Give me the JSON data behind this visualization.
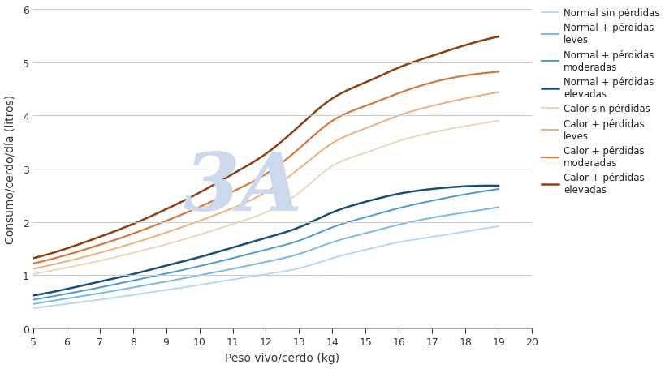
{
  "x": [
    5,
    6,
    7,
    8,
    9,
    10,
    11,
    12,
    13,
    14,
    15,
    16,
    17,
    18,
    19
  ],
  "series": [
    {
      "label": "Normal sin pérdidas",
      "color": "#b8d8f0",
      "linewidth": 1.4,
      "y": [
        0.38,
        0.46,
        0.54,
        0.63,
        0.72,
        0.82,
        0.92,
        1.02,
        1.13,
        1.32,
        1.48,
        1.62,
        1.72,
        1.82,
        1.92
      ]
    },
    {
      "label": "Normal + pérdidas\nleves",
      "color": "#7ab8de",
      "linewidth": 1.4,
      "y": [
        0.46,
        0.56,
        0.66,
        0.77,
        0.88,
        1.0,
        1.12,
        1.25,
        1.4,
        1.62,
        1.79,
        1.95,
        2.08,
        2.18,
        2.28
      ]
    },
    {
      "label": "Normal + pérdidas\nmoderadas",
      "color": "#4a9cc8",
      "linewidth": 1.4,
      "y": [
        0.54,
        0.65,
        0.77,
        0.9,
        1.03,
        1.17,
        1.32,
        1.48,
        1.65,
        1.9,
        2.09,
        2.26,
        2.4,
        2.52,
        2.62
      ]
    },
    {
      "label": "Normal + pérdidas\nelevadas",
      "color": "#1a4f72",
      "linewidth": 1.8,
      "y": [
        0.62,
        0.74,
        0.88,
        1.02,
        1.18,
        1.34,
        1.52,
        1.7,
        1.9,
        2.18,
        2.38,
        2.53,
        2.62,
        2.67,
        2.68
      ]
    },
    {
      "label": "Calor sin pérdidas",
      "color": "#e8d8b8",
      "linewidth": 1.4,
      "y": [
        1.02,
        1.14,
        1.27,
        1.42,
        1.58,
        1.76,
        1.96,
        2.18,
        2.55,
        3.05,
        3.3,
        3.52,
        3.68,
        3.8,
        3.9
      ]
    },
    {
      "label": "Calor + pérdidas\nleves",
      "color": "#e8b07a",
      "linewidth": 1.4,
      "y": [
        1.12,
        1.26,
        1.42,
        1.6,
        1.8,
        2.02,
        2.26,
        2.56,
        3.0,
        3.48,
        3.76,
        4.0,
        4.18,
        4.32,
        4.44
      ]
    },
    {
      "label": "Calor + pérdidas\nmoderadas",
      "color": "#d4793a",
      "linewidth": 1.6,
      "y": [
        1.22,
        1.38,
        1.57,
        1.78,
        2.02,
        2.28,
        2.57,
        2.9,
        3.38,
        3.9,
        4.18,
        4.42,
        4.62,
        4.75,
        4.82
      ]
    },
    {
      "label": "Calor + pérdidas\nelevadas",
      "color": "#8b4010",
      "linewidth": 1.8,
      "y": [
        1.32,
        1.5,
        1.72,
        1.96,
        2.24,
        2.55,
        2.9,
        3.28,
        3.8,
        4.32,
        4.62,
        4.9,
        5.12,
        5.32,
        5.48
      ]
    }
  ],
  "xlabel": "Peso vivo/cerdo (kg)",
  "ylabel": "Consumo/cerdo/día (litros)",
  "xlim": [
    5,
    20
  ],
  "ylim": [
    0,
    6
  ],
  "xticks": [
    5,
    6,
    7,
    8,
    9,
    10,
    11,
    12,
    13,
    14,
    15,
    16,
    17,
    18,
    19,
    20
  ],
  "yticks": [
    0,
    1,
    2,
    3,
    4,
    5,
    6
  ],
  "background_color": "#ffffff",
  "watermark_color": "#ccd8eb",
  "grid_color": "#cccccc"
}
